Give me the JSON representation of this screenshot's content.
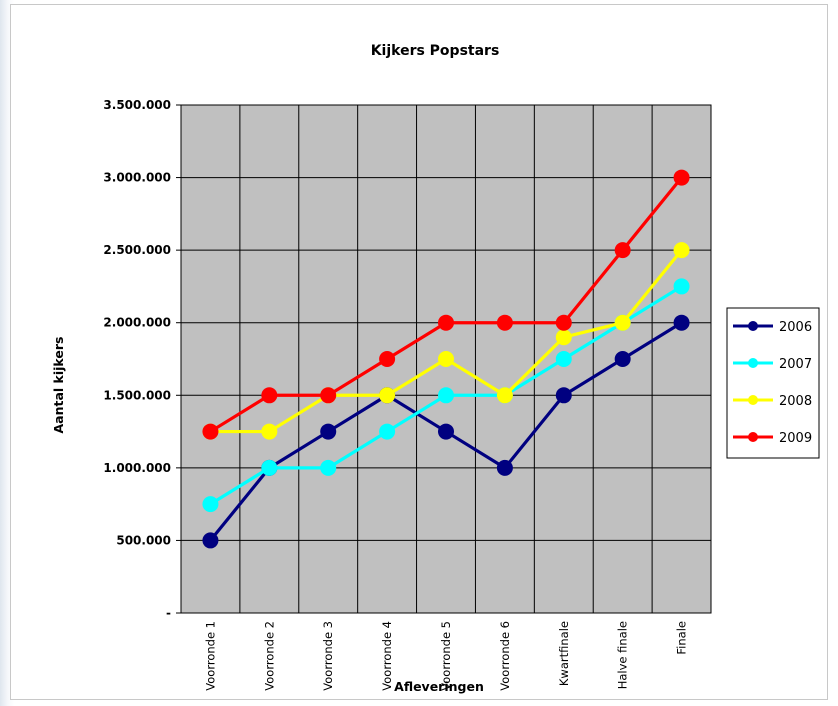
{
  "chart_data": {
    "type": "line",
    "title": "Kijkers Popstars",
    "xlabel": "Afleveringen",
    "ylabel": "Aantal kijkers",
    "ylim": [
      0,
      3500000
    ],
    "yticks": [
      0,
      500000,
      1000000,
      1500000,
      2000000,
      2500000,
      3000000,
      3500000
    ],
    "ytick_labels": [
      "-",
      "500.000",
      "1.000.000",
      "1.500.000",
      "2.000.000",
      "2.500.000",
      "3.000.000",
      "3.500.000"
    ],
    "categories": [
      "Voorronde 1",
      "Voorronde 2",
      "Voorronde 3",
      "Voorronde 4",
      "Voorronde 5",
      "Voorronde 6",
      "Kwartfinale",
      "Halve finale",
      "Finale"
    ],
    "grid": true,
    "plot_background": "#c0c0c0",
    "legend_position": "right",
    "series": [
      {
        "name": "2006",
        "color": "#000080",
        "values": [
          500000,
          1000000,
          1250000,
          1500000,
          1250000,
          1000000,
          1500000,
          1750000,
          2000000
        ]
      },
      {
        "name": "2007",
        "color": "#00ffff",
        "values": [
          750000,
          1000000,
          1000000,
          1250000,
          1500000,
          1500000,
          1750000,
          2000000,
          2250000
        ]
      },
      {
        "name": "2008",
        "color": "#ffff00",
        "values": [
          1250000,
          1250000,
          1500000,
          1500000,
          1750000,
          1500000,
          1900000,
          2000000,
          2500000
        ]
      },
      {
        "name": "2009",
        "color": "#ff0000",
        "values": [
          1250000,
          1500000,
          1500000,
          1750000,
          2000000,
          2000000,
          2000000,
          2500000,
          3000000
        ]
      }
    ]
  }
}
